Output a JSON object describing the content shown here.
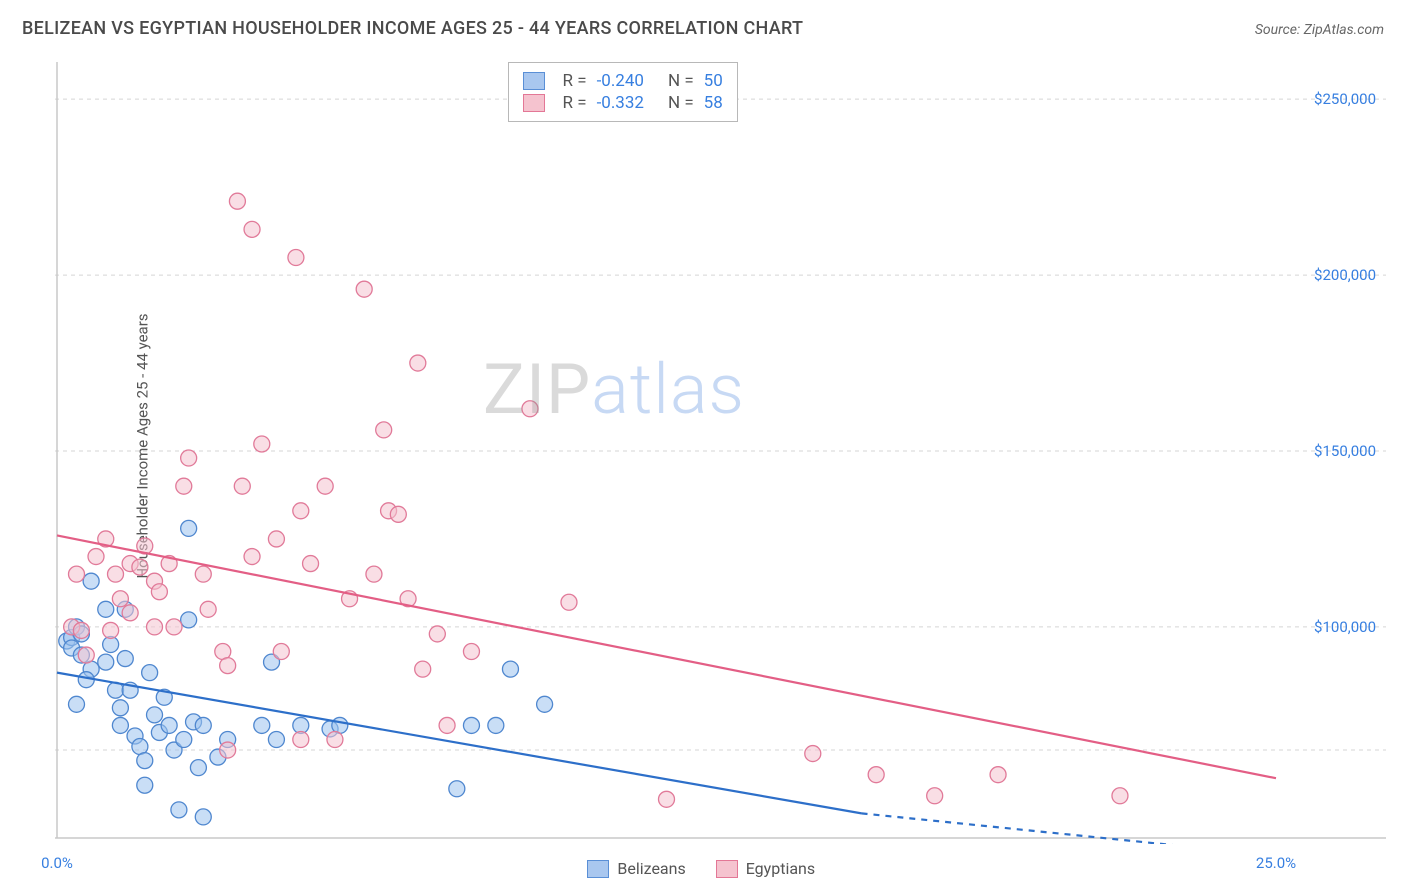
{
  "title": "BELIZEAN VS EGYPTIAN HOUSEHOLDER INCOME AGES 25 - 44 YEARS CORRELATION CHART",
  "source_label": "Source: ZipAtlas.com",
  "ylabel": "Householder Income Ages 25 - 44 years",
  "watermark": {
    "part1": "ZIP",
    "part2": "atlas"
  },
  "chart": {
    "type": "scatter",
    "background_color": "#ffffff",
    "grid_color": "#d5d5d5",
    "axis_color": "#c8c8c8",
    "text_color_axis": "#377fe0",
    "xlim": [
      0,
      25
    ],
    "ylim": [
      40000,
      260000
    ],
    "x_ticks": [
      {
        "v": 0,
        "label": "0.0%"
      },
      {
        "v": 25,
        "label": "25.0%"
      }
    ],
    "y_ticks": [
      {
        "v": 100000,
        "label": "$100,000"
      },
      {
        "v": 150000,
        "label": "$150,000"
      },
      {
        "v": 200000,
        "label": "$200,000"
      },
      {
        "v": 250000,
        "label": "$250,000"
      }
    ],
    "y_gridlines": [
      65000,
      100000,
      150000,
      200000,
      250000
    ],
    "marker_radius": 8,
    "marker_opacity": 0.55,
    "line_width": 2.2,
    "correlation_legend": {
      "rows": [
        {
          "swatch_fill": "#a9c7ef",
          "swatch_border": "#5a8fd6",
          "r": "-0.240",
          "n": "50"
        },
        {
          "swatch_fill": "#f5c3cf",
          "swatch_border": "#e37796",
          "r": "-0.332",
          "n": "58"
        }
      ]
    },
    "series_legend": [
      {
        "swatch_fill": "#a9c7ef",
        "swatch_border": "#5a8fd6",
        "label": "Belizeans"
      },
      {
        "swatch_fill": "#f5c3cf",
        "swatch_border": "#e37796",
        "label": "Egyptians"
      }
    ],
    "series": [
      {
        "name": "Belizeans",
        "marker_fill": "#9cc2ef",
        "marker_stroke": "#4f87cf",
        "trend_color": "#2d6fc9",
        "trend": {
          "x0": 0,
          "y0": 87000,
          "x1": 16.5,
          "y1": 47000,
          "dash_x1": 25,
          "dash_y1": 35000
        },
        "points": [
          [
            0.2,
            96000
          ],
          [
            0.3,
            97000
          ],
          [
            0.3,
            94000
          ],
          [
            0.5,
            92000
          ],
          [
            0.4,
            100000
          ],
          [
            0.5,
            98000
          ],
          [
            0.7,
            88000
          ],
          [
            0.6,
            85000
          ],
          [
            0.4,
            78000
          ],
          [
            1.0,
            90000
          ],
          [
            1.1,
            95000
          ],
          [
            1.2,
            82000
          ],
          [
            1.3,
            77000
          ],
          [
            1.3,
            72000
          ],
          [
            1.5,
            82000
          ],
          [
            1.6,
            69000
          ],
          [
            1.7,
            66000
          ],
          [
            1.4,
            91000
          ],
          [
            1.8,
            62000
          ],
          [
            1.8,
            55000
          ],
          [
            1.9,
            87000
          ],
          [
            2.0,
            75000
          ],
          [
            2.1,
            70000
          ],
          [
            2.2,
            80000
          ],
          [
            2.3,
            72000
          ],
          [
            2.4,
            65000
          ],
          [
            2.6,
            68000
          ],
          [
            2.7,
            102000
          ],
          [
            2.8,
            73000
          ],
          [
            2.9,
            60000
          ],
          [
            3.0,
            72000
          ],
          [
            2.5,
            48000
          ],
          [
            3.3,
            63000
          ],
          [
            3.5,
            68000
          ],
          [
            3.0,
            46000
          ],
          [
            4.2,
            72000
          ],
          [
            4.5,
            68000
          ],
          [
            4.4,
            90000
          ],
          [
            5.0,
            72000
          ],
          [
            5.6,
            71000
          ],
          [
            5.8,
            72000
          ],
          [
            2.7,
            128000
          ],
          [
            8.2,
            54000
          ],
          [
            8.5,
            72000
          ],
          [
            9.3,
            88000
          ],
          [
            9.0,
            72000
          ],
          [
            1.0,
            105000
          ],
          [
            1.4,
            105000
          ],
          [
            10.0,
            78000
          ],
          [
            0.7,
            113000
          ]
        ]
      },
      {
        "name": "Egyptians",
        "marker_fill": "#f4c3d0",
        "marker_stroke": "#e17a99",
        "trend_color": "#e35e85",
        "trend": {
          "x0": 0,
          "y0": 126000,
          "x1": 25,
          "y1": 57000
        },
        "points": [
          [
            0.3,
            100000
          ],
          [
            0.4,
            115000
          ],
          [
            0.5,
            99000
          ],
          [
            0.6,
            92000
          ],
          [
            0.8,
            120000
          ],
          [
            1.0,
            125000
          ],
          [
            1.2,
            115000
          ],
          [
            1.3,
            108000
          ],
          [
            1.5,
            118000
          ],
          [
            1.5,
            104000
          ],
          [
            1.7,
            117000
          ],
          [
            1.8,
            123000
          ],
          [
            2.0,
            113000
          ],
          [
            2.1,
            110000
          ],
          [
            2.3,
            118000
          ],
          [
            2.4,
            100000
          ],
          [
            2.6,
            140000
          ],
          [
            2.7,
            148000
          ],
          [
            3.0,
            115000
          ],
          [
            3.1,
            105000
          ],
          [
            3.4,
            93000
          ],
          [
            3.5,
            89000
          ],
          [
            3.7,
            221000
          ],
          [
            3.8,
            140000
          ],
          [
            4.0,
            120000
          ],
          [
            4.0,
            213000
          ],
          [
            4.2,
            152000
          ],
          [
            4.5,
            125000
          ],
          [
            4.6,
            93000
          ],
          [
            4.9,
            205000
          ],
          [
            5.0,
            133000
          ],
          [
            5.2,
            118000
          ],
          [
            5.5,
            140000
          ],
          [
            5.7,
            68000
          ],
          [
            6.0,
            108000
          ],
          [
            6.3,
            196000
          ],
          [
            6.5,
            115000
          ],
          [
            6.7,
            156000
          ],
          [
            6.8,
            133000
          ],
          [
            7.0,
            132000
          ],
          [
            7.2,
            108000
          ],
          [
            7.4,
            175000
          ],
          [
            7.5,
            88000
          ],
          [
            7.8,
            98000
          ],
          [
            8.0,
            72000
          ],
          [
            8.5,
            93000
          ],
          [
            9.7,
            162000
          ],
          [
            10.5,
            107000
          ],
          [
            12.5,
            51000
          ],
          [
            15.5,
            64000
          ],
          [
            16.8,
            58000
          ],
          [
            18.0,
            52000
          ],
          [
            19.3,
            58000
          ],
          [
            21.8,
            52000
          ],
          [
            5.0,
            68000
          ],
          [
            3.5,
            65000
          ],
          [
            2.0,
            100000
          ],
          [
            1.1,
            99000
          ]
        ]
      }
    ]
  }
}
